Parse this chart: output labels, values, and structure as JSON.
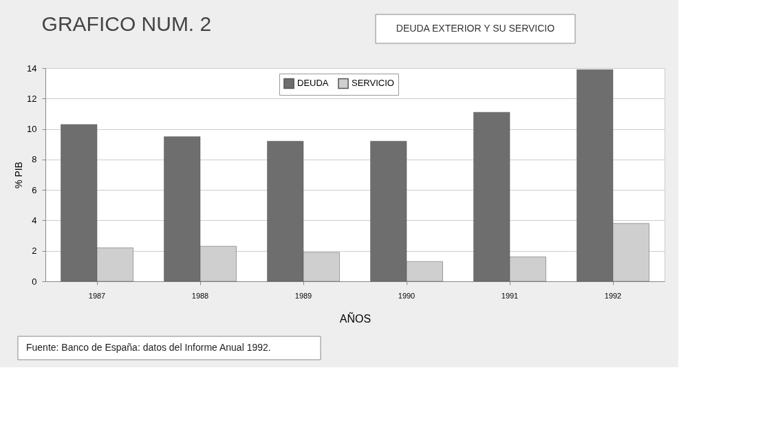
{
  "chart_data": {
    "type": "bar",
    "title": "GRAFICO NUM. 2",
    "subtitle": "DEUDA EXTERIOR Y SU SERVICIO",
    "xlabel": "AÑOS",
    "ylabel": "% PIB",
    "categories": [
      "1987",
      "1988",
      "1989",
      "1990",
      "1991",
      "1992"
    ],
    "series": [
      {
        "name": "DEUDA",
        "color": "#6e6e6e",
        "values": [
          10.3,
          9.5,
          9.2,
          9.2,
          11.1,
          13.9
        ]
      },
      {
        "name": "SERVICIO",
        "color": "#cfcfcf",
        "values": [
          2.2,
          2.3,
          1.9,
          1.3,
          1.6,
          3.8
        ]
      }
    ],
    "ylim": [
      0,
      14
    ],
    "yticks": [
      0,
      2,
      4,
      6,
      8,
      10,
      12,
      14
    ],
    "grid": "y",
    "legend": "top",
    "annotations": [
      "Fuente: Banco de España: datos del Informe Anual 1992."
    ]
  }
}
